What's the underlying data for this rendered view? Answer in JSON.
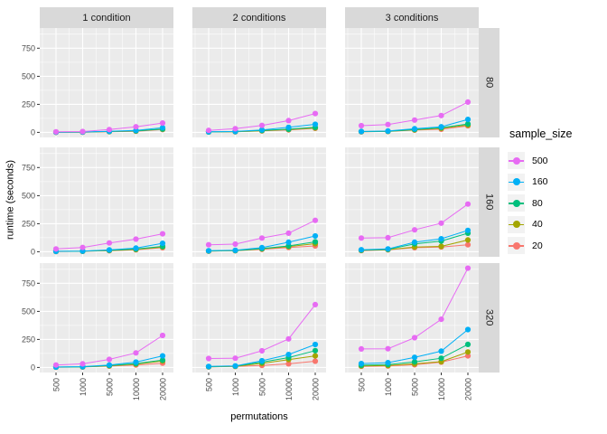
{
  "styles": {
    "panel_bg": "#EBEBEB",
    "strip_bg": "#D9D9D9",
    "grid_color": "#FFFFFF",
    "axis_text_color": "#4D4D4D",
    "tick_mark_color": "#333333",
    "legend_key_bg": "#F2F2F2"
  },
  "chart_data": {
    "type": "line",
    "title": "",
    "xlabel": "permutations",
    "ylabel": "runtime (seconds)",
    "x_categories": [
      "500",
      "1000",
      "5000",
      "10000",
      "20000"
    ],
    "y_ticks": [
      0,
      250,
      500,
      750
    ],
    "ylim": [
      -45,
      930
    ],
    "grid": "on",
    "facet_layout": "3 columns (conditions) by 3 rows (groups)",
    "col_facets": [
      "1 condition",
      "2 conditions",
      "3 conditions"
    ],
    "row_facets": [
      "80",
      "160",
      "320"
    ],
    "legend": {
      "title": "sample_size",
      "position": "right",
      "entries": [
        {
          "label": "500",
          "color": "#E76BF3"
        },
        {
          "label": "160",
          "color": "#00B0F6"
        },
        {
          "label": "80",
          "color": "#00BF7D"
        },
        {
          "label": "40",
          "color": "#A3A500"
        },
        {
          "label": "20",
          "color": "#F8766D"
        }
      ]
    },
    "facets": [
      {
        "row_label": "80",
        "col_label": "1 condition",
        "series": [
          {
            "name": "500",
            "values": [
              5,
              7,
              25,
              50,
              83
            ]
          },
          {
            "name": "160",
            "values": [
              2,
              3,
              10,
              18,
              42
            ]
          },
          {
            "name": "80",
            "values": [
              2,
              3,
              8,
              14,
              30
            ]
          },
          {
            "name": "40",
            "values": [
              1,
              2,
              7,
              12,
              28
            ]
          },
          {
            "name": "20",
            "values": [
              1,
              2,
              6,
              10,
              25
            ]
          }
        ]
      },
      {
        "row_label": "80",
        "col_label": "2 conditions",
        "series": [
          {
            "name": "500",
            "values": [
              18,
              33,
              62,
              105,
              168
            ]
          },
          {
            "name": "160",
            "values": [
              5,
              8,
              22,
              45,
              72
            ]
          },
          {
            "name": "80",
            "values": [
              4,
              7,
              17,
              28,
              45
            ]
          },
          {
            "name": "40",
            "values": [
              4,
              6,
              15,
              25,
              40
            ]
          },
          {
            "name": "20",
            "values": [
              3,
              5,
              13,
              22,
              36
            ]
          }
        ]
      },
      {
        "row_label": "80",
        "col_label": "3 conditions",
        "series": [
          {
            "name": "500",
            "values": [
              60,
              70,
              110,
              150,
              270
            ]
          },
          {
            "name": "160",
            "values": [
              8,
              12,
              32,
              50,
              115
            ]
          },
          {
            "name": "80",
            "values": [
              7,
              10,
              26,
              42,
              75
            ]
          },
          {
            "name": "40",
            "values": [
              6,
              9,
              23,
              36,
              65
            ]
          },
          {
            "name": "20",
            "values": [
              5,
              8,
              20,
              28,
              58
            ]
          }
        ]
      },
      {
        "row_label": "160",
        "col_label": "1 condition",
        "series": [
          {
            "name": "500",
            "values": [
              25,
              38,
              78,
              112,
              160
            ]
          },
          {
            "name": "160",
            "values": [
              4,
              6,
              16,
              32,
              75
            ]
          },
          {
            "name": "80",
            "values": [
              3,
              5,
              13,
              24,
              48
            ]
          },
          {
            "name": "40",
            "values": [
              3,
              4,
              11,
              20,
              42
            ]
          },
          {
            "name": "20",
            "values": [
              2,
              4,
              9,
              17,
              36
            ]
          }
        ]
      },
      {
        "row_label": "160",
        "col_label": "2 conditions",
        "series": [
          {
            "name": "500",
            "values": [
              62,
              68,
              122,
              165,
              280
            ]
          },
          {
            "name": "160",
            "values": [
              9,
              13,
              36,
              85,
              140
            ]
          },
          {
            "name": "80",
            "values": [
              7,
              11,
              28,
              52,
              88
            ]
          },
          {
            "name": "40",
            "values": [
              6,
              10,
              25,
              45,
              72
            ]
          },
          {
            "name": "20",
            "values": [
              5,
              9,
              21,
              38,
              52
            ]
          }
        ]
      },
      {
        "row_label": "160",
        "col_label": "3 conditions",
        "series": [
          {
            "name": "500",
            "values": [
              122,
              125,
              195,
              255,
              425
            ]
          },
          {
            "name": "160",
            "values": [
              18,
              25,
              85,
              115,
              190
            ]
          },
          {
            "name": "80",
            "values": [
              15,
              22,
              70,
              95,
              165
            ]
          },
          {
            "name": "40",
            "values": [
              12,
              19,
              42,
              48,
              105
            ]
          },
          {
            "name": "20",
            "values": [
              10,
              17,
              36,
              42,
              62
            ]
          }
        ]
      },
      {
        "row_label": "320",
        "col_label": "1 condition",
        "series": [
          {
            "name": "500",
            "values": [
              22,
              32,
              72,
              130,
              285
            ]
          },
          {
            "name": "160",
            "values": [
              4,
              7,
              22,
              48,
              103
            ]
          },
          {
            "name": "80",
            "values": [
              3,
              6,
              17,
              35,
              65
            ]
          },
          {
            "name": "40",
            "values": [
              3,
              5,
              15,
              30,
              58
            ]
          },
          {
            "name": "20",
            "values": [
              2,
              4,
              12,
              22,
              38
            ]
          }
        ]
      },
      {
        "row_label": "320",
        "col_label": "2 conditions",
        "series": [
          {
            "name": "500",
            "values": [
              80,
              82,
              148,
              255,
              560
            ]
          },
          {
            "name": "160",
            "values": [
              9,
              14,
              60,
              115,
              205
            ]
          },
          {
            "name": "80",
            "values": [
              7,
              12,
              48,
              88,
              150
            ]
          },
          {
            "name": "40",
            "values": [
              6,
              10,
              36,
              70,
              103
            ]
          },
          {
            "name": "20",
            "values": [
              5,
              9,
              18,
              32,
              56
            ]
          }
        ]
      },
      {
        "row_label": "320",
        "col_label": "3 conditions",
        "series": [
          {
            "name": "500",
            "values": [
              165,
              167,
              265,
              430,
              885
            ]
          },
          {
            "name": "160",
            "values": [
              35,
              43,
              90,
              145,
              338
            ]
          },
          {
            "name": "80",
            "values": [
              20,
              26,
              50,
              82,
              206
            ]
          },
          {
            "name": "40",
            "values": [
              13,
              17,
              32,
              52,
              138
            ]
          },
          {
            "name": "20",
            "values": [
              10,
              13,
              24,
              48,
              103
            ]
          }
        ]
      }
    ]
  }
}
